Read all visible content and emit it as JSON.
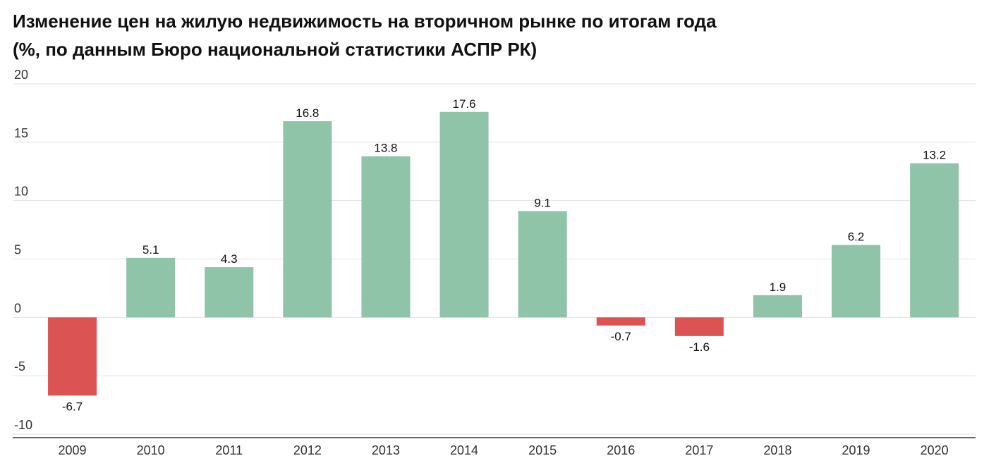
{
  "chart_data": {
    "type": "bar",
    "title_line1": "Изменение цен на жилую недвижимость на вторичном рынке по итогам года",
    "title_line2": "(%, по данным Бюро национальной статистики АСПР РК)",
    "xlabel": "",
    "ylabel": "",
    "categories": [
      "2009",
      "2010",
      "2011",
      "2012",
      "2013",
      "2014",
      "2015",
      "2016",
      "2017",
      "2018",
      "2019",
      "2020"
    ],
    "values": [
      -6.7,
      5.1,
      4.3,
      16.8,
      13.8,
      17.6,
      9.1,
      -0.7,
      -1.6,
      1.9,
      6.2,
      13.2
    ],
    "value_labels": [
      "-6.7",
      "5.1",
      "4.3",
      "16.8",
      "13.8",
      "17.6",
      "9.1",
      "-0.7",
      "-1.6",
      "1.9",
      "6.2",
      "13.2"
    ],
    "y_ticks": [
      20,
      15,
      10,
      5,
      0,
      -5,
      -10
    ],
    "y_tick_labels": [
      "20",
      "15",
      "10",
      "5",
      "0",
      "-5",
      "-10"
    ],
    "ylim": [
      -10,
      20
    ],
    "grid": true,
    "legend": "none",
    "colors": {
      "positive": "#8fc4a9",
      "negative": "#dc5353",
      "grid": "#e3e3e3",
      "axis": "#666666"
    }
  }
}
